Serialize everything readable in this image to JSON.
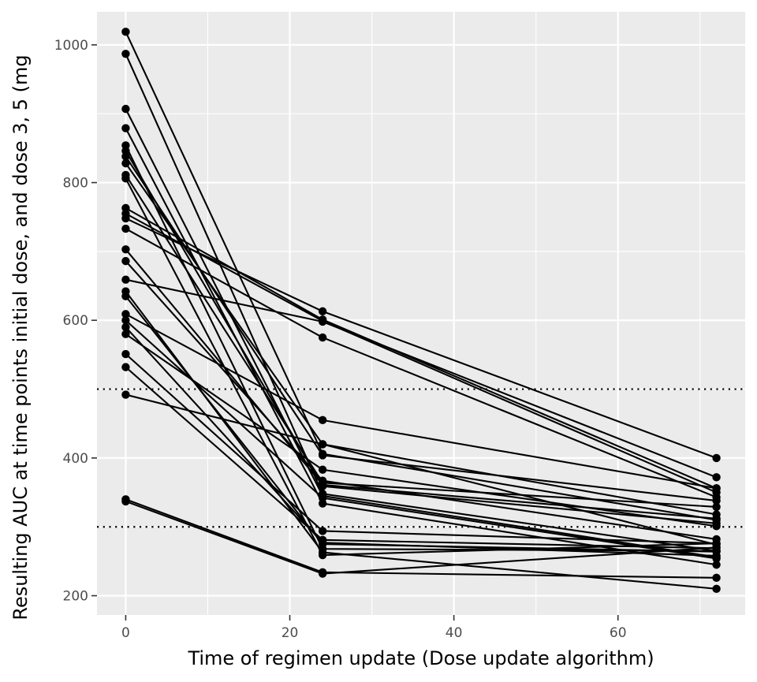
{
  "chart_data": {
    "type": "line",
    "title": "",
    "xlabel": "Time of regimen update (Dose update algorithm)",
    "ylabel": "Resulting AUC at time points initial dose, and dose 3, 5 (mg",
    "xlim": [
      -3.5,
      75.5
    ],
    "ylim": [
      172,
      1048
    ],
    "x_ticks": [
      0,
      20,
      40,
      60
    ],
    "y_ticks": [
      200,
      400,
      600,
      800,
      1000
    ],
    "x": [
      0,
      24,
      72
    ],
    "reference_lines": [
      300,
      500
    ],
    "grid": true,
    "legend": "none",
    "colors": {
      "panel": "#ebebeb",
      "grid": "#ffffff",
      "line": "#000000",
      "reference": "#000000",
      "tick_text": "#4d4d4d"
    },
    "series": [
      {
        "values": [
          1019,
          406,
          310
        ]
      },
      {
        "values": [
          987,
          348,
          265
        ]
      },
      {
        "values": [
          907,
          345,
          256
        ]
      },
      {
        "values": [
          879,
          334,
          245
        ]
      },
      {
        "values": [
          854,
          268,
          265
        ]
      },
      {
        "values": [
          846,
          359,
          305
        ]
      },
      {
        "values": [
          838,
          404,
          338
        ]
      },
      {
        "values": [
          828,
          420,
          318
        ]
      },
      {
        "values": [
          811,
          364,
          329
        ]
      },
      {
        "values": [
          806,
          259,
          276
        ]
      },
      {
        "values": [
          763,
          601,
          356
        ]
      },
      {
        "values": [
          755,
          599,
          350
        ]
      },
      {
        "values": [
          748,
          613,
          400
        ]
      },
      {
        "values": [
          733,
          575,
          343
        ]
      },
      {
        "values": [
          703,
          361,
          312
        ]
      },
      {
        "values": [
          686,
          367,
          282
        ]
      },
      {
        "values": [
          659,
          598,
          372
        ]
      },
      {
        "values": [
          642,
          263,
          210
        ]
      },
      {
        "values": [
          635,
          275,
          264
        ]
      },
      {
        "values": [
          609,
          455,
          356
        ]
      },
      {
        "values": [
          600,
          342,
          254
        ]
      },
      {
        "values": [
          590,
          277,
          258
        ]
      },
      {
        "values": [
          580,
          383,
          301
        ]
      },
      {
        "values": [
          551,
          294,
          276
        ]
      },
      {
        "values": [
          532,
          281,
          269
        ]
      },
      {
        "values": [
          492,
          420,
          274
        ]
      },
      {
        "values": [
          340,
          234,
          226
        ]
      },
      {
        "values": [
          337,
          232,
          270
        ]
      }
    ]
  }
}
